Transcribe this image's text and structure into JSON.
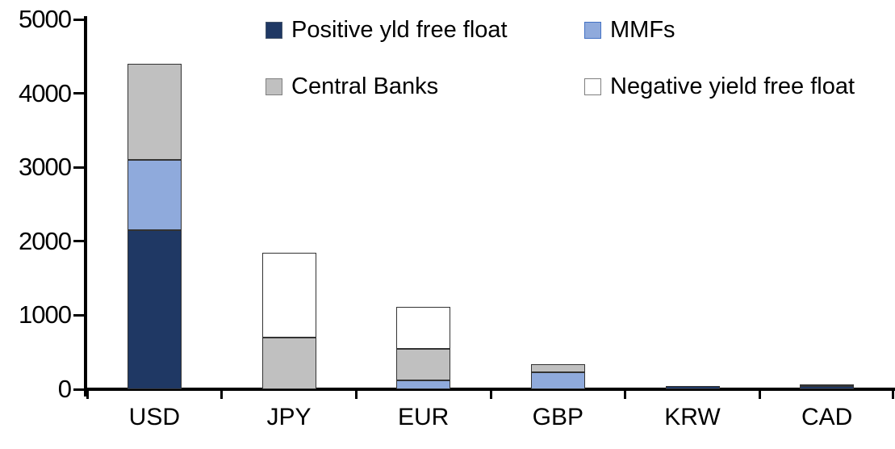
{
  "chart_data": {
    "type": "bar",
    "stacked": true,
    "title": "",
    "xlabel": "",
    "ylabel": "",
    "categories": [
      "USD",
      "JPY",
      "EUR",
      "GBP",
      "KRW",
      "CAD"
    ],
    "series": [
      {
        "name": "Positive yld free float",
        "color": "#1f3864",
        "swatch_border": "#44546a",
        "values": [
          2150,
          0,
          0,
          0,
          45,
          40
        ]
      },
      {
        "name": "MMFs",
        "color": "#8faadc",
        "swatch_border": "#4472c4",
        "values": [
          950,
          0,
          120,
          230,
          0,
          0
        ]
      },
      {
        "name": "Central Banks",
        "color": "#c0c0c0",
        "swatch_border": "#7f7f7f",
        "values": [
          1300,
          700,
          430,
          110,
          0,
          30
        ]
      },
      {
        "name": "Negative yield free float",
        "color": "#ffffff",
        "swatch_border": "#7f7f7f",
        "values": [
          0,
          1150,
          560,
          0,
          0,
          0
        ]
      }
    ],
    "totals": {
      "USD": 4400,
      "JPY": 1850,
      "EUR": 1110,
      "GBP": 340,
      "KRW": 45,
      "CAD": 70
    },
    "ylim": [
      0,
      5000
    ],
    "yticks": [
      "0",
      "1000",
      "2000",
      "3000",
      "4000",
      "5000"
    ],
    "grid": false,
    "legend_position": "top-inside",
    "bar_border_color": "#333333",
    "axis_color": "#000000",
    "background_color": "#ffffff"
  }
}
